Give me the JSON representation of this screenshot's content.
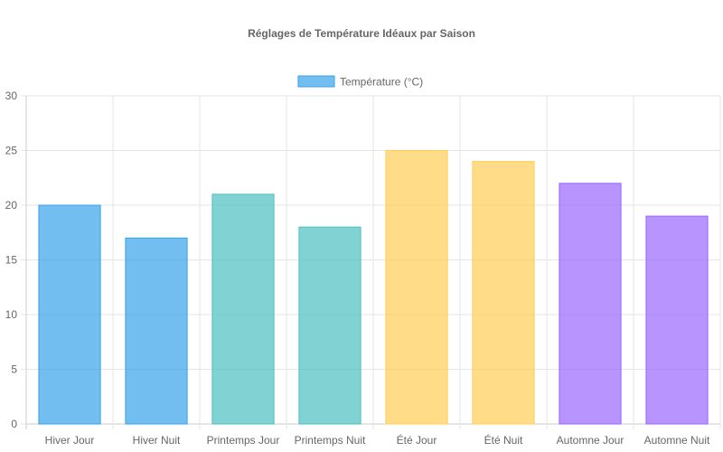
{
  "chart_data": {
    "type": "bar",
    "title": "Réglages de Température Idéaux par Saison",
    "xlabel": "",
    "ylabel": "",
    "ylim": [
      0,
      30
    ],
    "yticks": [
      0,
      5,
      10,
      15,
      20,
      25,
      30
    ],
    "grid": true,
    "legend": "top",
    "categories": [
      "Hiver Jour",
      "Hiver Nuit",
      "Printemps Jour",
      "Printemps Nuit",
      "Été Jour",
      "Été Nuit",
      "Automne Jour",
      "Automne Nuit"
    ],
    "series": [
      {
        "name": "Température (°C)",
        "values": [
          20,
          17,
          21,
          18,
          25,
          24,
          22,
          19
        ]
      }
    ],
    "bar_colors": [
      {
        "fill": "rgba(54,162,235,0.7)",
        "stroke": "#36a2eb"
      },
      {
        "fill": "rgba(54,162,235,0.7)",
        "stroke": "#36a2eb"
      },
      {
        "fill": "rgba(75,192,192,0.7)",
        "stroke": "#4bc0c0"
      },
      {
        "fill": "rgba(75,192,192,0.7)",
        "stroke": "#4bc0c0"
      },
      {
        "fill": "rgba(255,206,86,0.7)",
        "stroke": "#ffce56"
      },
      {
        "fill": "rgba(255,206,86,0.7)",
        "stroke": "#ffce56"
      },
      {
        "fill": "rgba(153,102,255,0.7)",
        "stroke": "#9966ff"
      },
      {
        "fill": "rgba(153,102,255,0.7)",
        "stroke": "#9966ff"
      }
    ],
    "legend_swatch": {
      "fill": "rgba(54,162,235,0.7)",
      "stroke": "#36a2eb"
    },
    "grid_color": "#e5e5e5",
    "axis_color": "#cccccc"
  }
}
